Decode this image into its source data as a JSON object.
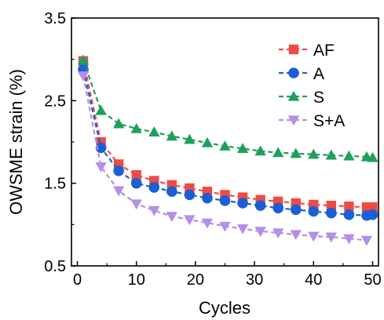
{
  "chart_data": {
    "type": "line",
    "title": "",
    "xlabel": "Cycles",
    "ylabel": "OWSME strain (%)",
    "xlim": [
      -1,
      51
    ],
    "ylim": [
      0.5,
      3.5
    ],
    "xticks": [
      0,
      10,
      20,
      30,
      40,
      50
    ],
    "yticks": [
      0.5,
      1.5,
      2.5,
      3.5
    ],
    "xtick_labels": [
      "0",
      "10",
      "20",
      "30",
      "40",
      "50"
    ],
    "ytick_labels": [
      "0.5",
      "1.5",
      "2.5",
      "3.5"
    ],
    "legend_position": "top-right",
    "grid": false,
    "series": [
      {
        "name": "AF",
        "color": "#f04a45",
        "marker": "square",
        "x": [
          1,
          4,
          7,
          10,
          13,
          16,
          19,
          22,
          25,
          28,
          31,
          34,
          37,
          40,
          43,
          46,
          49,
          50
        ],
        "values": [
          2.98,
          2.0,
          1.73,
          1.6,
          1.53,
          1.48,
          1.44,
          1.4,
          1.36,
          1.33,
          1.3,
          1.28,
          1.26,
          1.24,
          1.23,
          1.22,
          1.21,
          1.21
        ]
      },
      {
        "name": "A",
        "color": "#1a5fd6",
        "marker": "circle",
        "x": [
          1,
          4,
          7,
          10,
          13,
          16,
          19,
          22,
          25,
          28,
          31,
          34,
          37,
          40,
          43,
          46,
          49,
          50
        ],
        "values": [
          2.88,
          1.93,
          1.65,
          1.5,
          1.45,
          1.4,
          1.36,
          1.32,
          1.29,
          1.26,
          1.23,
          1.2,
          1.18,
          1.16,
          1.14,
          1.12,
          1.11,
          1.12
        ]
      },
      {
        "name": "S",
        "color": "#1fa05a",
        "marker": "triangle-up",
        "x": [
          1,
          4,
          7,
          10,
          13,
          16,
          19,
          22,
          25,
          28,
          31,
          34,
          37,
          40,
          43,
          46,
          49,
          50
        ],
        "values": [
          2.99,
          2.38,
          2.22,
          2.16,
          2.12,
          2.07,
          2.03,
          1.99,
          1.95,
          1.92,
          1.89,
          1.87,
          1.86,
          1.85,
          1.84,
          1.83,
          1.82,
          1.81
        ]
      },
      {
        "name": "S+A",
        "color": "#b58ee8",
        "marker": "triangle-down",
        "x": [
          1,
          4,
          7,
          10,
          13,
          16,
          19,
          22,
          25,
          28,
          31,
          34,
          37,
          40,
          43,
          46,
          49
        ],
        "values": [
          2.8,
          1.7,
          1.41,
          1.25,
          1.17,
          1.1,
          1.06,
          1.02,
          0.98,
          0.95,
          0.92,
          0.9,
          0.88,
          0.86,
          0.85,
          0.83,
          0.81
        ]
      }
    ]
  }
}
